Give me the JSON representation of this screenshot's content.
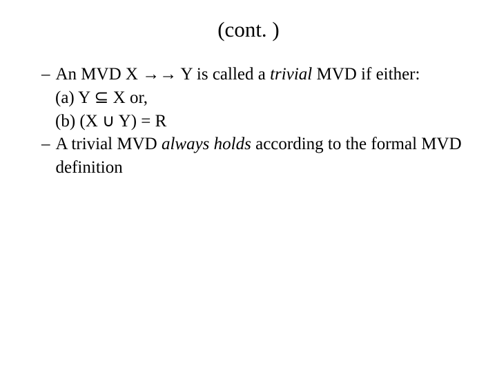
{
  "title": "(cont. )",
  "bullet1_part1": "An MVD X ",
  "bullet1_arrow": "→→",
  "bullet1_part2": " Y is called a ",
  "bullet1_italic": "trivial",
  "bullet1_part3": " MVD if either:",
  "line_a_part1": "(a) Y ",
  "line_a_symbol": "⊆",
  "line_a_part2": " X or,",
  "line_b_part1": "(b) (X ",
  "line_b_symbol": "∪",
  "line_b_part2": " Y) = R",
  "bullet2_part1": "A trivial MVD ",
  "bullet2_italic": "always holds",
  "bullet2_part2": " according to the formal MVD definition",
  "styling": {
    "title_fontsize": 31,
    "body_fontsize": 25,
    "font_family": "Times New Roman",
    "background_color": "#ffffff",
    "text_color": "#000000",
    "line_height": 1.35
  }
}
